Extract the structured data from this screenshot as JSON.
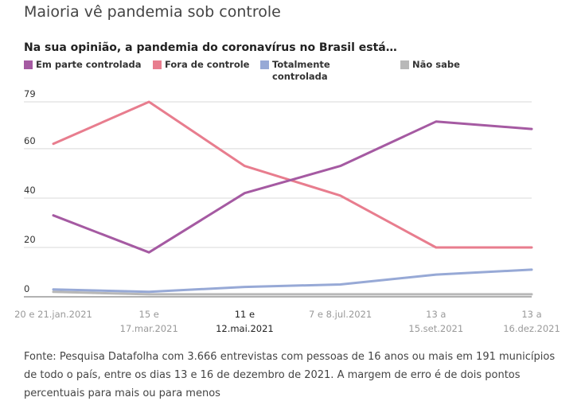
{
  "headline": "Maioria vê pandemia sob controle",
  "chart_data": {
    "type": "line",
    "title": "Na sua opinião, a pandemia do coronavírus no Brasil está…",
    "legend_position": "top",
    "grid": true,
    "y_ticks": [
      "79",
      "60",
      "40",
      "20",
      "0"
    ],
    "y_tick_values": [
      79,
      60,
      40,
      20,
      0
    ],
    "ylim": [
      0,
      79
    ],
    "x_labels": [
      [
        "20 e 21.jan.2021"
      ],
      [
        "15 e",
        "17.mar.2021"
      ],
      [
        "11 e",
        "12.mai.2021"
      ],
      [
        "7 e 8.jul.2021"
      ],
      [
        "13 a",
        "15.set.2021"
      ],
      [
        "13 a",
        "16.dez.2021"
      ]
    ],
    "active_x_index": 2,
    "series": [
      {
        "name": "Em parte controlada",
        "color": "#a55aa2",
        "values": [
          33,
          18,
          42,
          53,
          71,
          68
        ]
      },
      {
        "name": "Fora de controle",
        "color": "#e87d8e",
        "values": [
          62,
          79,
          53,
          41,
          20,
          20
        ]
      },
      {
        "name": "Totalmente controlada",
        "color": "#97a9d6",
        "values": [
          3,
          2,
          4,
          5,
          9,
          11
        ]
      },
      {
        "name": "Não sabe",
        "color": "#b8b8b8",
        "values": [
          2,
          1,
          1,
          1,
          1,
          1
        ]
      }
    ]
  },
  "legend": {
    "items": [
      {
        "label": "Em parte controlada",
        "color": "#a55aa2"
      },
      {
        "label": "Fora de controle",
        "color": "#e87d8e"
      },
      {
        "label": "Totalmente controlada",
        "color": "#97a9d6"
      },
      {
        "label": "Não sabe",
        "color": "#b8b8b8"
      }
    ]
  },
  "source": "Fonte: Pesquisa Datafolha com 3.666 entrevistas com pessoas de 16 anos ou mais em 191 municípios de todo o país, entre os dias 13 e 16 de dezembro de 2021. A margem de erro é de dois pontos percentuais para mais ou para menos"
}
